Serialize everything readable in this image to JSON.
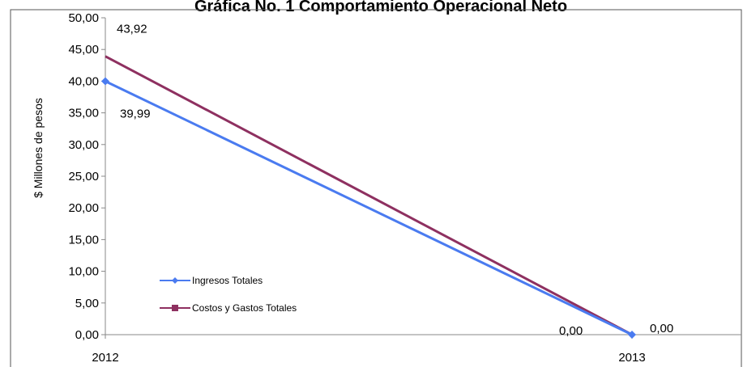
{
  "chart_data": {
    "type": "line",
    "title": "Gráfica No. 1 Comportamiento Operacional Neto",
    "ylabel": "$ Millones de pesos",
    "xlabel": "",
    "categories": [
      "2012",
      "2013"
    ],
    "ylim": [
      0,
      50
    ],
    "y_ticks": [
      "0,00",
      "5,00",
      "10,00",
      "15,00",
      "20,00",
      "25,00",
      "30,00",
      "35,00",
      "40,00",
      "45,00",
      "50,00"
    ],
    "grid": false,
    "legend_position": "bottom-left",
    "series": [
      {
        "name": "Ingresos Totales",
        "values": [
          39.99,
          0.0
        ],
        "value_labels": [
          "39,99",
          "0,00"
        ],
        "color": "#4A7BF0",
        "marker": "diamond"
      },
      {
        "name": "Costos y Gastos Totales",
        "values": [
          43.92,
          0.0
        ],
        "value_labels": [
          "43,92",
          "0,00"
        ],
        "color": "#8E3060",
        "marker": "square"
      }
    ]
  }
}
